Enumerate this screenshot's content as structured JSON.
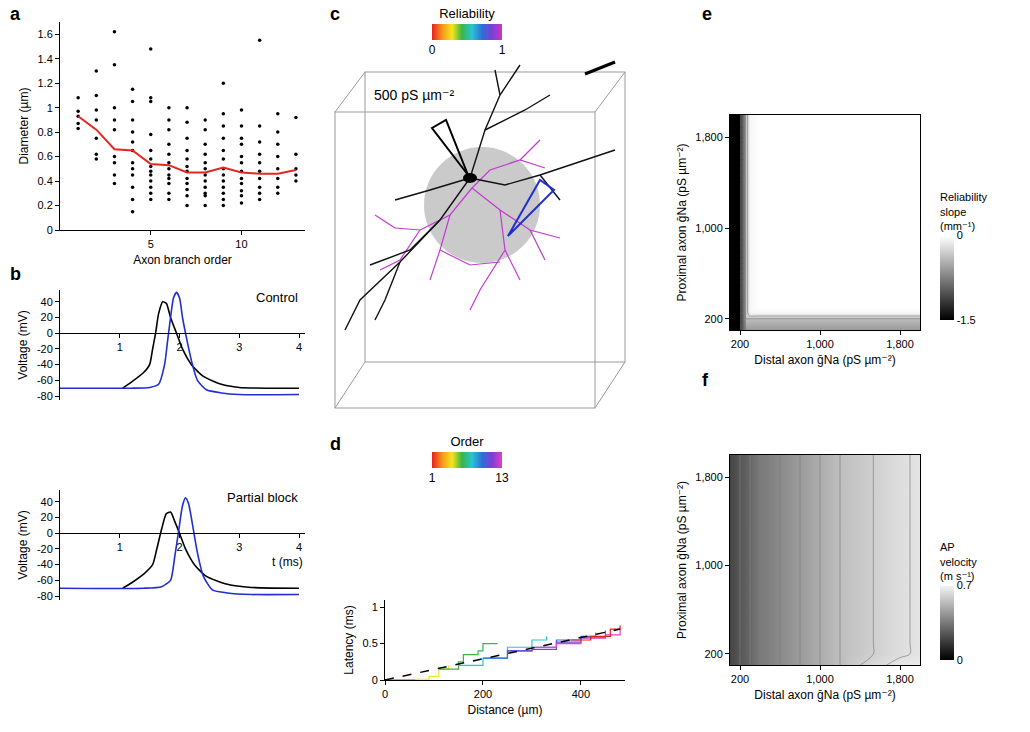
{
  "chart_data": [
    {
      "label": "a",
      "type": "scatter",
      "xlabel": "Axon branch order",
      "ylabel": "Diameter (µm)",
      "xlim": [
        0,
        13.5
      ],
      "xticks": [
        5,
        10
      ],
      "ylim": [
        0,
        1.7
      ],
      "yticks": [
        0,
        0.2,
        0.4,
        0.6,
        0.8,
        1,
        1.2,
        1.4,
        1.6
      ],
      "color": "#000000",
      "marker": "circle",
      "points": [
        {
          "x": 1,
          "values": [
            1.08,
            0.97,
            0.93,
            0.87,
            0.83
          ]
        },
        {
          "x": 2,
          "values": [
            1.3,
            1.1,
            0.98,
            0.9,
            0.75,
            0.62,
            0.58
          ]
        },
        {
          "x": 3,
          "values": [
            1.62,
            1.35,
            1.0,
            0.9,
            0.82,
            0.6,
            0.55,
            0.45,
            0.38
          ]
        },
        {
          "x": 4,
          "values": [
            1.15,
            1.05,
            0.9,
            0.8,
            0.72,
            0.65,
            0.55,
            0.5,
            0.45,
            0.35,
            0.25,
            0.15
          ]
        },
        {
          "x": 5,
          "values": [
            1.48,
            1.08,
            1.05,
            0.78,
            0.65,
            0.58,
            0.52,
            0.48,
            0.45,
            0.4,
            0.35,
            0.3,
            0.25
          ]
        },
        {
          "x": 6,
          "values": [
            1.0,
            0.9,
            0.82,
            0.7,
            0.62,
            0.55,
            0.5,
            0.45,
            0.42,
            0.38,
            0.3,
            0.25
          ]
        },
        {
          "x": 7,
          "values": [
            1.0,
            0.88,
            0.75,
            0.65,
            0.58,
            0.52,
            0.48,
            0.42,
            0.38,
            0.33,
            0.28,
            0.2
          ]
        },
        {
          "x": 8,
          "values": [
            0.9,
            0.82,
            0.7,
            0.62,
            0.55,
            0.5,
            0.45,
            0.4,
            0.35,
            0.3,
            0.28,
            0.2
          ]
        },
        {
          "x": 9,
          "values": [
            1.2,
            0.95,
            0.85,
            0.75,
            0.65,
            0.58,
            0.5,
            0.45,
            0.4,
            0.35,
            0.3,
            0.25,
            0.2
          ]
        },
        {
          "x": 10,
          "values": [
            0.98,
            0.85,
            0.75,
            0.7,
            0.6,
            0.55,
            0.48,
            0.42,
            0.38,
            0.32,
            0.28,
            0.22
          ]
        },
        {
          "x": 11,
          "values": [
            1.55,
            0.85,
            0.72,
            0.62,
            0.55,
            0.48,
            0.42,
            0.35,
            0.3,
            0.25
          ]
        },
        {
          "x": 12,
          "values": [
            0.95,
            0.8,
            0.7,
            0.6,
            0.5,
            0.42,
            0.35,
            0.3
          ]
        },
        {
          "x": 13,
          "values": [
            0.92,
            0.62,
            0.5,
            0.45,
            0.4
          ]
        }
      ],
      "series": [
        {
          "type": "line",
          "color": "#e8251f",
          "x": [
            1,
            2,
            3,
            4,
            5,
            6,
            7,
            8,
            9,
            10,
            11,
            12,
            13
          ],
          "values": [
            0.93,
            0.82,
            0.66,
            0.65,
            0.54,
            0.53,
            0.47,
            0.47,
            0.51,
            0.47,
            0.46,
            0.46,
            0.49
          ]
        }
      ]
    },
    {
      "label": "b",
      "type": "line",
      "xlabel": "t (ms)",
      "ylabel": "Voltage (mV)",
      "xlim": [
        0,
        4.1
      ],
      "xticks": [
        1,
        2,
        3,
        4
      ],
      "ylim": [
        -85,
        55
      ],
      "yticks": [
        -80,
        -60,
        -40,
        -20,
        0,
        20,
        40
      ],
      "panels": [
        {
          "title": "Control",
          "series": [
            {
              "color": "#000000",
              "x": [
                1.05,
                1.2,
                1.4,
                1.5,
                1.55,
                1.6,
                1.65,
                1.72,
                1.78,
                1.85,
                1.95,
                2.05,
                2.2,
                2.4,
                2.7,
                3.0,
                3.5,
                4
              ],
              "values": [
                -70,
                -62,
                -50,
                -40,
                -20,
                0,
                25,
                40,
                38,
                20,
                0,
                -20,
                -40,
                -55,
                -65,
                -69,
                -70,
                -70
              ]
            },
            {
              "color": "#1f2fd0",
              "x": [
                0,
                1.2,
                1.5,
                1.65,
                1.75,
                1.8,
                1.85,
                1.9,
                1.95,
                2.0,
                2.05,
                2.1,
                2.2,
                2.3,
                2.45,
                2.7,
                3.0,
                4
              ],
              "values": [
                -70,
                -70,
                -69,
                -65,
                -40,
                -10,
                20,
                45,
                52,
                45,
                20,
                0,
                -35,
                -60,
                -72,
                -76,
                -78,
                -78
              ]
            }
          ]
        },
        {
          "title": "Partial block",
          "series": [
            {
              "color": "#000000",
              "x": [
                1.05,
                1.2,
                1.4,
                1.55,
                1.62,
                1.7,
                1.78,
                1.85,
                1.92,
                2.0,
                2.1,
                2.25,
                2.45,
                2.8,
                3.2,
                4
              ],
              "values": [
                -70,
                -63,
                -52,
                -40,
                -20,
                5,
                25,
                27,
                15,
                0,
                -20,
                -40,
                -55,
                -65,
                -69,
                -70
              ]
            },
            {
              "color": "#1f2fd0",
              "x": [
                0,
                1.4,
                1.7,
                1.85,
                1.92,
                1.98,
                2.05,
                2.1,
                2.15,
                2.22,
                2.3,
                2.4,
                2.55,
                2.8,
                3.2,
                4
              ],
              "values": [
                -70,
                -70,
                -68,
                -60,
                -30,
                0,
                35,
                45,
                38,
                10,
                -25,
                -55,
                -72,
                -76,
                -78,
                -78
              ]
            }
          ]
        }
      ]
    },
    {
      "label": "c",
      "type": "diagram",
      "text": "500 pS µm⁻²",
      "colorbar": {
        "title": "Reliability",
        "range": [
          0,
          1
        ],
        "ticks": [
          0,
          1
        ],
        "colors": [
          "#e8201c",
          "#f7941d",
          "#f5e61a",
          "#39b54a",
          "#29c5d6",
          "#2e6fd6",
          "#7b3fd6",
          "#c837c8"
        ]
      }
    },
    {
      "label": "d",
      "type": "line",
      "xlabel": "Distance (µm)",
      "ylabel": "Latency (ms)",
      "xlim": [
        0,
        490
      ],
      "xticks": [
        0,
        200,
        400
      ],
      "ylim": [
        0,
        1.1
      ],
      "yticks": [
        0,
        0.5,
        1
      ],
      "colorbar": {
        "title": "Order",
        "range": [
          1,
          13
        ],
        "ticks": [
          1,
          13
        ],
        "colors": [
          "#e8201c",
          "#f7941d",
          "#f5e61a",
          "#39b54a",
          "#29c5d6",
          "#2e6fd6",
          "#7b3fd6",
          "#e040c8"
        ]
      },
      "series": [
        {
          "color": "#e8201c",
          "x": [
            0,
            30,
            60
          ],
          "values": [
            0,
            0,
            0.01
          ]
        },
        {
          "color": "#f5e61a",
          "x": [
            60,
            90,
            110,
            130
          ],
          "values": [
            0.01,
            0.05,
            0.15,
            0.2
          ]
        },
        {
          "color": "#39b54a",
          "x": [
            110,
            150,
            160,
            190,
            200,
            230
          ],
          "values": [
            0.15,
            0.25,
            0.35,
            0.4,
            0.5,
            0.5
          ]
        },
        {
          "color": "#29c5d6",
          "x": [
            150,
            200,
            250,
            300,
            330
          ],
          "values": [
            0.2,
            0.3,
            0.45,
            0.55,
            0.6
          ]
        },
        {
          "color": "#2e6fd6",
          "x": [
            200,
            250,
            300,
            350,
            400,
            430
          ],
          "values": [
            0.3,
            0.4,
            0.45,
            0.55,
            0.6,
            0.65
          ]
        },
        {
          "color": "#7b3fd6",
          "x": [
            250,
            300,
            350,
            400,
            450
          ],
          "values": [
            0.4,
            0.42,
            0.52,
            0.58,
            0.68
          ]
        },
        {
          "color": "#e040c8",
          "x": [
            300,
            350,
            400,
            450,
            480
          ],
          "values": [
            0.45,
            0.5,
            0.58,
            0.62,
            0.7
          ]
        },
        {
          "color": "#e8201c",
          "x": [
            380,
            420,
            460,
            480
          ],
          "values": [
            0.55,
            0.6,
            0.7,
            0.75
          ]
        },
        {
          "color": "#000000",
          "line_style": "dashed",
          "x": [
            0,
            480
          ],
          "values": [
            0,
            0.7
          ]
        }
      ]
    },
    {
      "label": "e",
      "type": "heatmap",
      "xlabel": "Distal axon ḡNa (pS µm⁻²)",
      "ylabel": "Proximal axon ḡNa (pS µm⁻²)",
      "xlim": [
        100,
        2000
      ],
      "ylim": [
        100,
        2000
      ],
      "xticks": [
        200,
        {
          "value": 1000,
          "label": "1,000"
        },
        {
          "value": 1800,
          "label": "1,800"
        }
      ],
      "yticks": [
        200,
        {
          "value": 1000,
          "label": "1,000"
        },
        {
          "value": 1800,
          "label": "1,800"
        }
      ],
      "x": [
        100,
        200,
        230,
        260,
        300,
        400,
        600,
        1000,
        1400,
        1800,
        2000
      ],
      "y": [
        100,
        200,
        230,
        260,
        300,
        400,
        600,
        1000,
        1400,
        1800,
        2000
      ],
      "z": [
        [
          -1.5,
          -1.5,
          -1.0,
          -0.6,
          -0.6,
          -0.6,
          -0.6,
          -0.6,
          -0.6,
          -0.6,
          -0.6
        ],
        [
          -1.5,
          -1.5,
          -1.0,
          -0.4,
          -0.4,
          -0.4,
          -0.4,
          -0.4,
          -0.4,
          -0.4,
          -0.4
        ],
        [
          -1.5,
          -1.5,
          -1.0,
          -0.3,
          -0.15,
          -0.15,
          -0.15,
          -0.15,
          -0.15,
          -0.15,
          -0.15
        ],
        [
          -1.5,
          -1.5,
          -1.0,
          -0.3,
          -0.05,
          -0.05,
          -0.05,
          -0.05,
          -0.05,
          -0.05,
          -0.05
        ],
        [
          -1.5,
          -1.5,
          -1.0,
          -0.3,
          -0.05,
          0,
          0,
          0,
          0,
          0,
          0
        ],
        [
          -1.5,
          -1.5,
          -1.0,
          -0.3,
          -0.05,
          0,
          0,
          0,
          0,
          0,
          0
        ],
        [
          -1.5,
          -1.5,
          -1.0,
          -0.3,
          -0.05,
          0,
          0,
          0,
          0,
          0,
          0
        ],
        [
          -1.5,
          -1.5,
          -1.0,
          -0.3,
          -0.05,
          0,
          0,
          0,
          0,
          0,
          0
        ],
        [
          -1.5,
          -1.5,
          -1.0,
          -0.3,
          -0.05,
          0,
          0,
          0,
          0,
          0,
          0
        ],
        [
          -1.5,
          -1.5,
          -1.0,
          -0.3,
          -0.05,
          0,
          0,
          0,
          0,
          0,
          0
        ],
        [
          -1.5,
          -1.5,
          -1.0,
          -0.3,
          -0.05,
          0,
          0,
          0,
          0,
          0,
          0
        ]
      ],
      "colorbar": {
        "title": "Reliability slope (mm⁻¹)",
        "range": [
          -1.5,
          0
        ],
        "ticks": [
          -1.5,
          0
        ],
        "colors": [
          "#000000",
          "#ffffff"
        ]
      }
    },
    {
      "label": "f",
      "type": "heatmap",
      "xlabel": "Distal axon ḡNa (pS µm⁻²)",
      "ylabel": "Proximal axon ḡNa (pS µm⁻²)",
      "xlim": [
        100,
        2000
      ],
      "ylim": [
        100,
        2000
      ],
      "xticks": [
        200,
        {
          "value": 1000,
          "label": "1,000"
        },
        {
          "value": 1800,
          "label": "1,800"
        }
      ],
      "yticks": [
        200,
        {
          "value": 1000,
          "label": "1,000"
        },
        {
          "value": 1800,
          "label": "1,800"
        }
      ],
      "x": [
        100,
        200,
        300,
        400,
        600,
        800,
        1000,
        1200,
        1400,
        1600,
        1800,
        2000
      ],
      "y": [
        100,
        200,
        300,
        600,
        1000,
        1400,
        1800,
        2000
      ],
      "z": [
        [
          0.2,
          0.25,
          0.3,
          0.35,
          0.4,
          0.45,
          0.5,
          0.55,
          0.6,
          0.64,
          0.67,
          0.69
        ],
        [
          0.2,
          0.25,
          0.3,
          0.35,
          0.4,
          0.45,
          0.5,
          0.55,
          0.58,
          0.61,
          0.64,
          0.66
        ],
        [
          0.2,
          0.25,
          0.3,
          0.35,
          0.4,
          0.45,
          0.5,
          0.55,
          0.58,
          0.61,
          0.64,
          0.66
        ],
        [
          0.2,
          0.25,
          0.3,
          0.35,
          0.4,
          0.45,
          0.5,
          0.55,
          0.58,
          0.61,
          0.64,
          0.66
        ],
        [
          0.2,
          0.25,
          0.3,
          0.35,
          0.4,
          0.45,
          0.5,
          0.55,
          0.58,
          0.61,
          0.64,
          0.66
        ],
        [
          0.2,
          0.25,
          0.3,
          0.35,
          0.4,
          0.45,
          0.5,
          0.55,
          0.58,
          0.61,
          0.64,
          0.66
        ],
        [
          0.2,
          0.25,
          0.3,
          0.35,
          0.4,
          0.45,
          0.5,
          0.55,
          0.58,
          0.61,
          0.64,
          0.66
        ],
        [
          0.2,
          0.25,
          0.3,
          0.35,
          0.4,
          0.45,
          0.5,
          0.55,
          0.58,
          0.61,
          0.64,
          0.66
        ]
      ],
      "colorbar": {
        "title": "AP velocity (m s⁻¹)",
        "range": [
          0,
          0.7
        ],
        "ticks": [
          0,
          0.7
        ],
        "colors": [
          "#000000",
          "#f2f2f2"
        ]
      }
    }
  ]
}
